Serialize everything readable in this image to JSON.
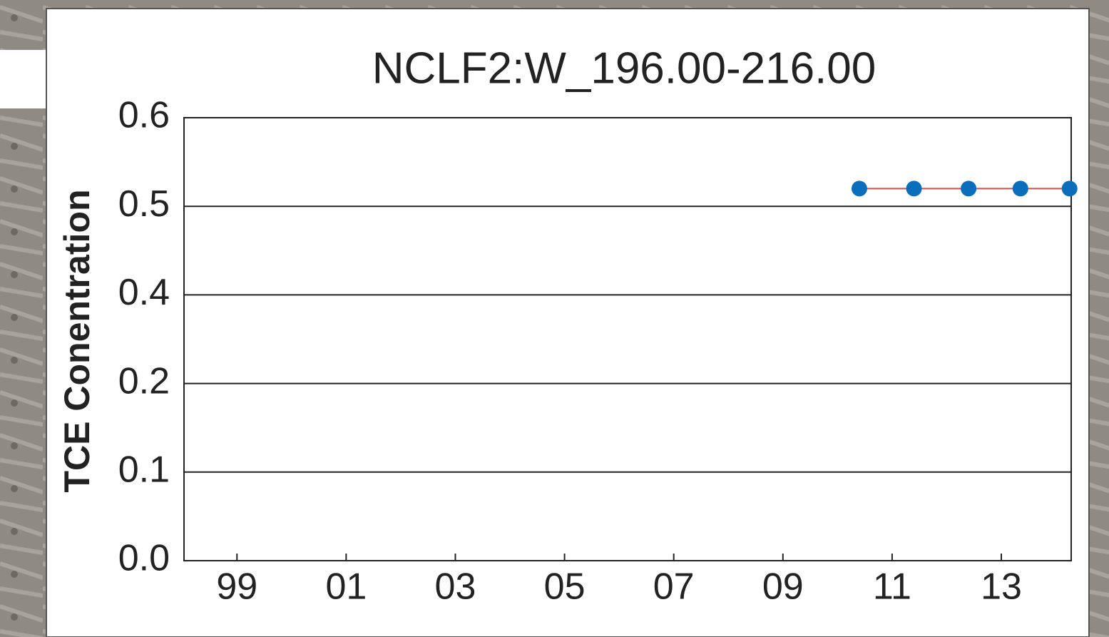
{
  "chart_data": {
    "type": "line",
    "title": "NCLF2:W_196.00-216.00",
    "y_label": "TCE Conentration",
    "x": [
      2010.4,
      2011.4,
      2012.4,
      2013.35,
      2014.25
    ],
    "series": [
      {
        "color": "#0a6ebd",
        "line_color": "#c85050",
        "values": [
          0.52,
          0.52,
          0.52,
          0.52,
          0.52
        ]
      }
    ],
    "xlim": [
      1998.03,
      2014.28
    ],
    "xticks": [
      {
        "value": 1999,
        "label": "99"
      },
      {
        "value": 2001,
        "label": "01"
      },
      {
        "value": 2003,
        "label": "03"
      },
      {
        "value": 2005,
        "label": "05"
      },
      {
        "value": 2007,
        "label": "07"
      },
      {
        "value": 2009,
        "label": "09"
      },
      {
        "value": 2011,
        "label": "11"
      },
      {
        "value": 2013,
        "label": "13"
      }
    ],
    "ylim": [
      0,
      0.6
    ],
    "yticks": [
      {
        "value": 0,
        "label": "0.0"
      },
      0.1,
      0.2,
      0.4,
      0.5,
      0.6
    ],
    "yscale": "ticks-evenly-spaced",
    "grid": true
  }
}
